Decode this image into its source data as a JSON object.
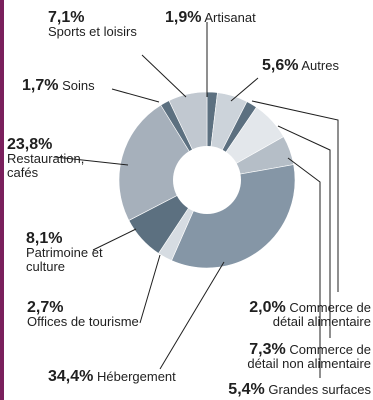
{
  "chart_data": {
    "type": "pie",
    "variant": "donut",
    "slices": [
      {
        "name": "Artisanat",
        "value": 1.9,
        "pct_label": "1,9%",
        "color": "#5c7080"
      },
      {
        "name": "Autres",
        "value": 5.6,
        "pct_label": "5,6%",
        "color": "#ccd3da"
      },
      {
        "name": "Commerce de détail alimentaire",
        "value": 2.0,
        "pct_label": "2,0%",
        "color": "#5c7080"
      },
      {
        "name": "Commerce de détail non alimentaire",
        "value": 7.3,
        "pct_label": "7,3%",
        "color": "#e3e7eb"
      },
      {
        "name": "Grandes surfaces",
        "value": 5.4,
        "pct_label": "5,4%",
        "color": "#b5bec7"
      },
      {
        "name": "Hébergement",
        "value": 34.4,
        "pct_label": "34,4%",
        "color": "#8596a6"
      },
      {
        "name": "Offices de tourisme",
        "value": 2.7,
        "pct_label": "2,7%",
        "color": "#d6dce2"
      },
      {
        "name": "Patrimoine et culture",
        "value": 8.1,
        "pct_label": "8,1%",
        "color": "#5c7080"
      },
      {
        "name": "Restauration, cafés",
        "value": 23.8,
        "pct_label": "23,8%",
        "color": "#a6b0bb"
      },
      {
        "name": "Soins",
        "value": 1.7,
        "pct_label": "1,7%",
        "color": "#5c7080"
      },
      {
        "name": "Sports et loisirs",
        "value": 7.1,
        "pct_label": "7,1%",
        "color": "#c1c8d0"
      }
    ],
    "start_angle_deg": 0,
    "direction": "clockwise",
    "center_hole": true,
    "title": "",
    "legend": "none (callout labels)"
  },
  "labels": {
    "artisanat": {
      "pct": "1,9%",
      "line1": "Artisanat"
    },
    "autres": {
      "pct": "5,6%",
      "line1": "Autres"
    },
    "commerce_alim": {
      "pct": "2,0%",
      "line1": "Commerce de",
      "line2": "détail alimentaire"
    },
    "commerce_non_alim": {
      "pct": "7,3%",
      "line1": "Commerce de",
      "line2": "détail non alimentaire"
    },
    "grandes_surfaces": {
      "pct": "5,4%",
      "line1": "Grandes surfaces"
    },
    "hebergement": {
      "pct": "34,4%",
      "line1": "Hébergement"
    },
    "offices": {
      "pct": "2,7%",
      "line1": "Offices de tourisme"
    },
    "patrimoine": {
      "pct": "8,1%",
      "line1": "Patrimoine et",
      "line2": "culture"
    },
    "restauration": {
      "pct": "23,8%",
      "line1": "Restauration,",
      "line2": "cafés"
    },
    "soins": {
      "pct": "1,7%",
      "line1": "Soins"
    },
    "sports": {
      "pct": "7,1%",
      "line1": "Sports et loisirs"
    }
  },
  "colors": {
    "accent_stripe": "#7a1f5c",
    "leader_line": "#1f1f1f",
    "center_hole": "#ffffff"
  }
}
